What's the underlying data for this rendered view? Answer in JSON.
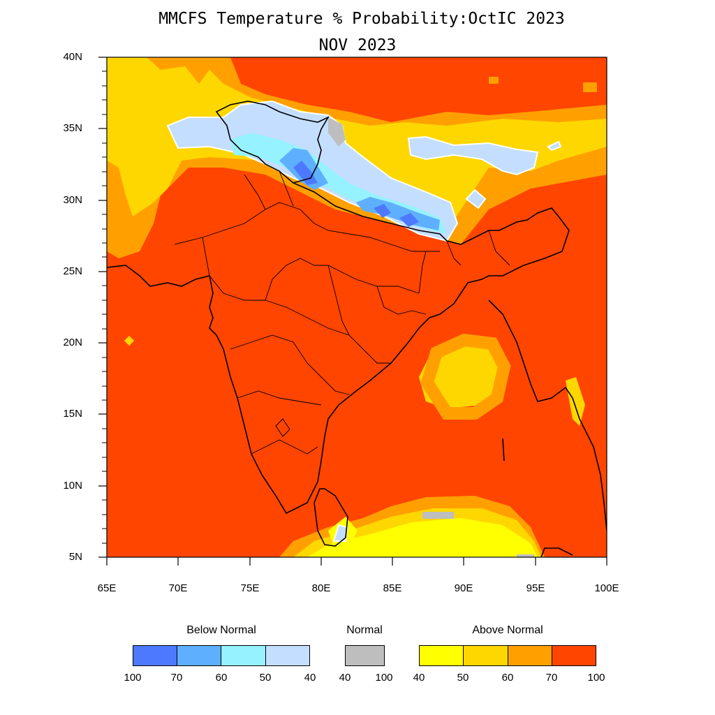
{
  "title": "MMCFS Temperature % Probability:OctIC 2023",
  "subtitle": "NOV 2023",
  "lat_ticks": [
    "40N",
    "35N",
    "30N",
    "25N",
    "20N",
    "15N",
    "10N",
    "5N"
  ],
  "lon_ticks": [
    "65E",
    "70E",
    "75E",
    "80E",
    "85E",
    "90E",
    "95E",
    "100E"
  ],
  "legend": {
    "below": {
      "title": "Below Normal",
      "labels": [
        "100",
        "70",
        "60",
        "50",
        "40"
      ],
      "colors": [
        "#4d79ff",
        "#5eb0ff",
        "#96f2ff",
        "#c4deff"
      ]
    },
    "normal": {
      "title": "Normal",
      "labels": [
        "40",
        "100"
      ],
      "color": "#bebebe"
    },
    "above": {
      "title": "Above Normal",
      "labels": [
        "40",
        "50",
        "60",
        "70",
        "100"
      ],
      "colors": [
        "#ffff00",
        "#ffd700",
        "#ffa000",
        "#ff4500"
      ]
    }
  },
  "colors": {
    "ocean_base": "#ff4500",
    "border": "#000000"
  }
}
